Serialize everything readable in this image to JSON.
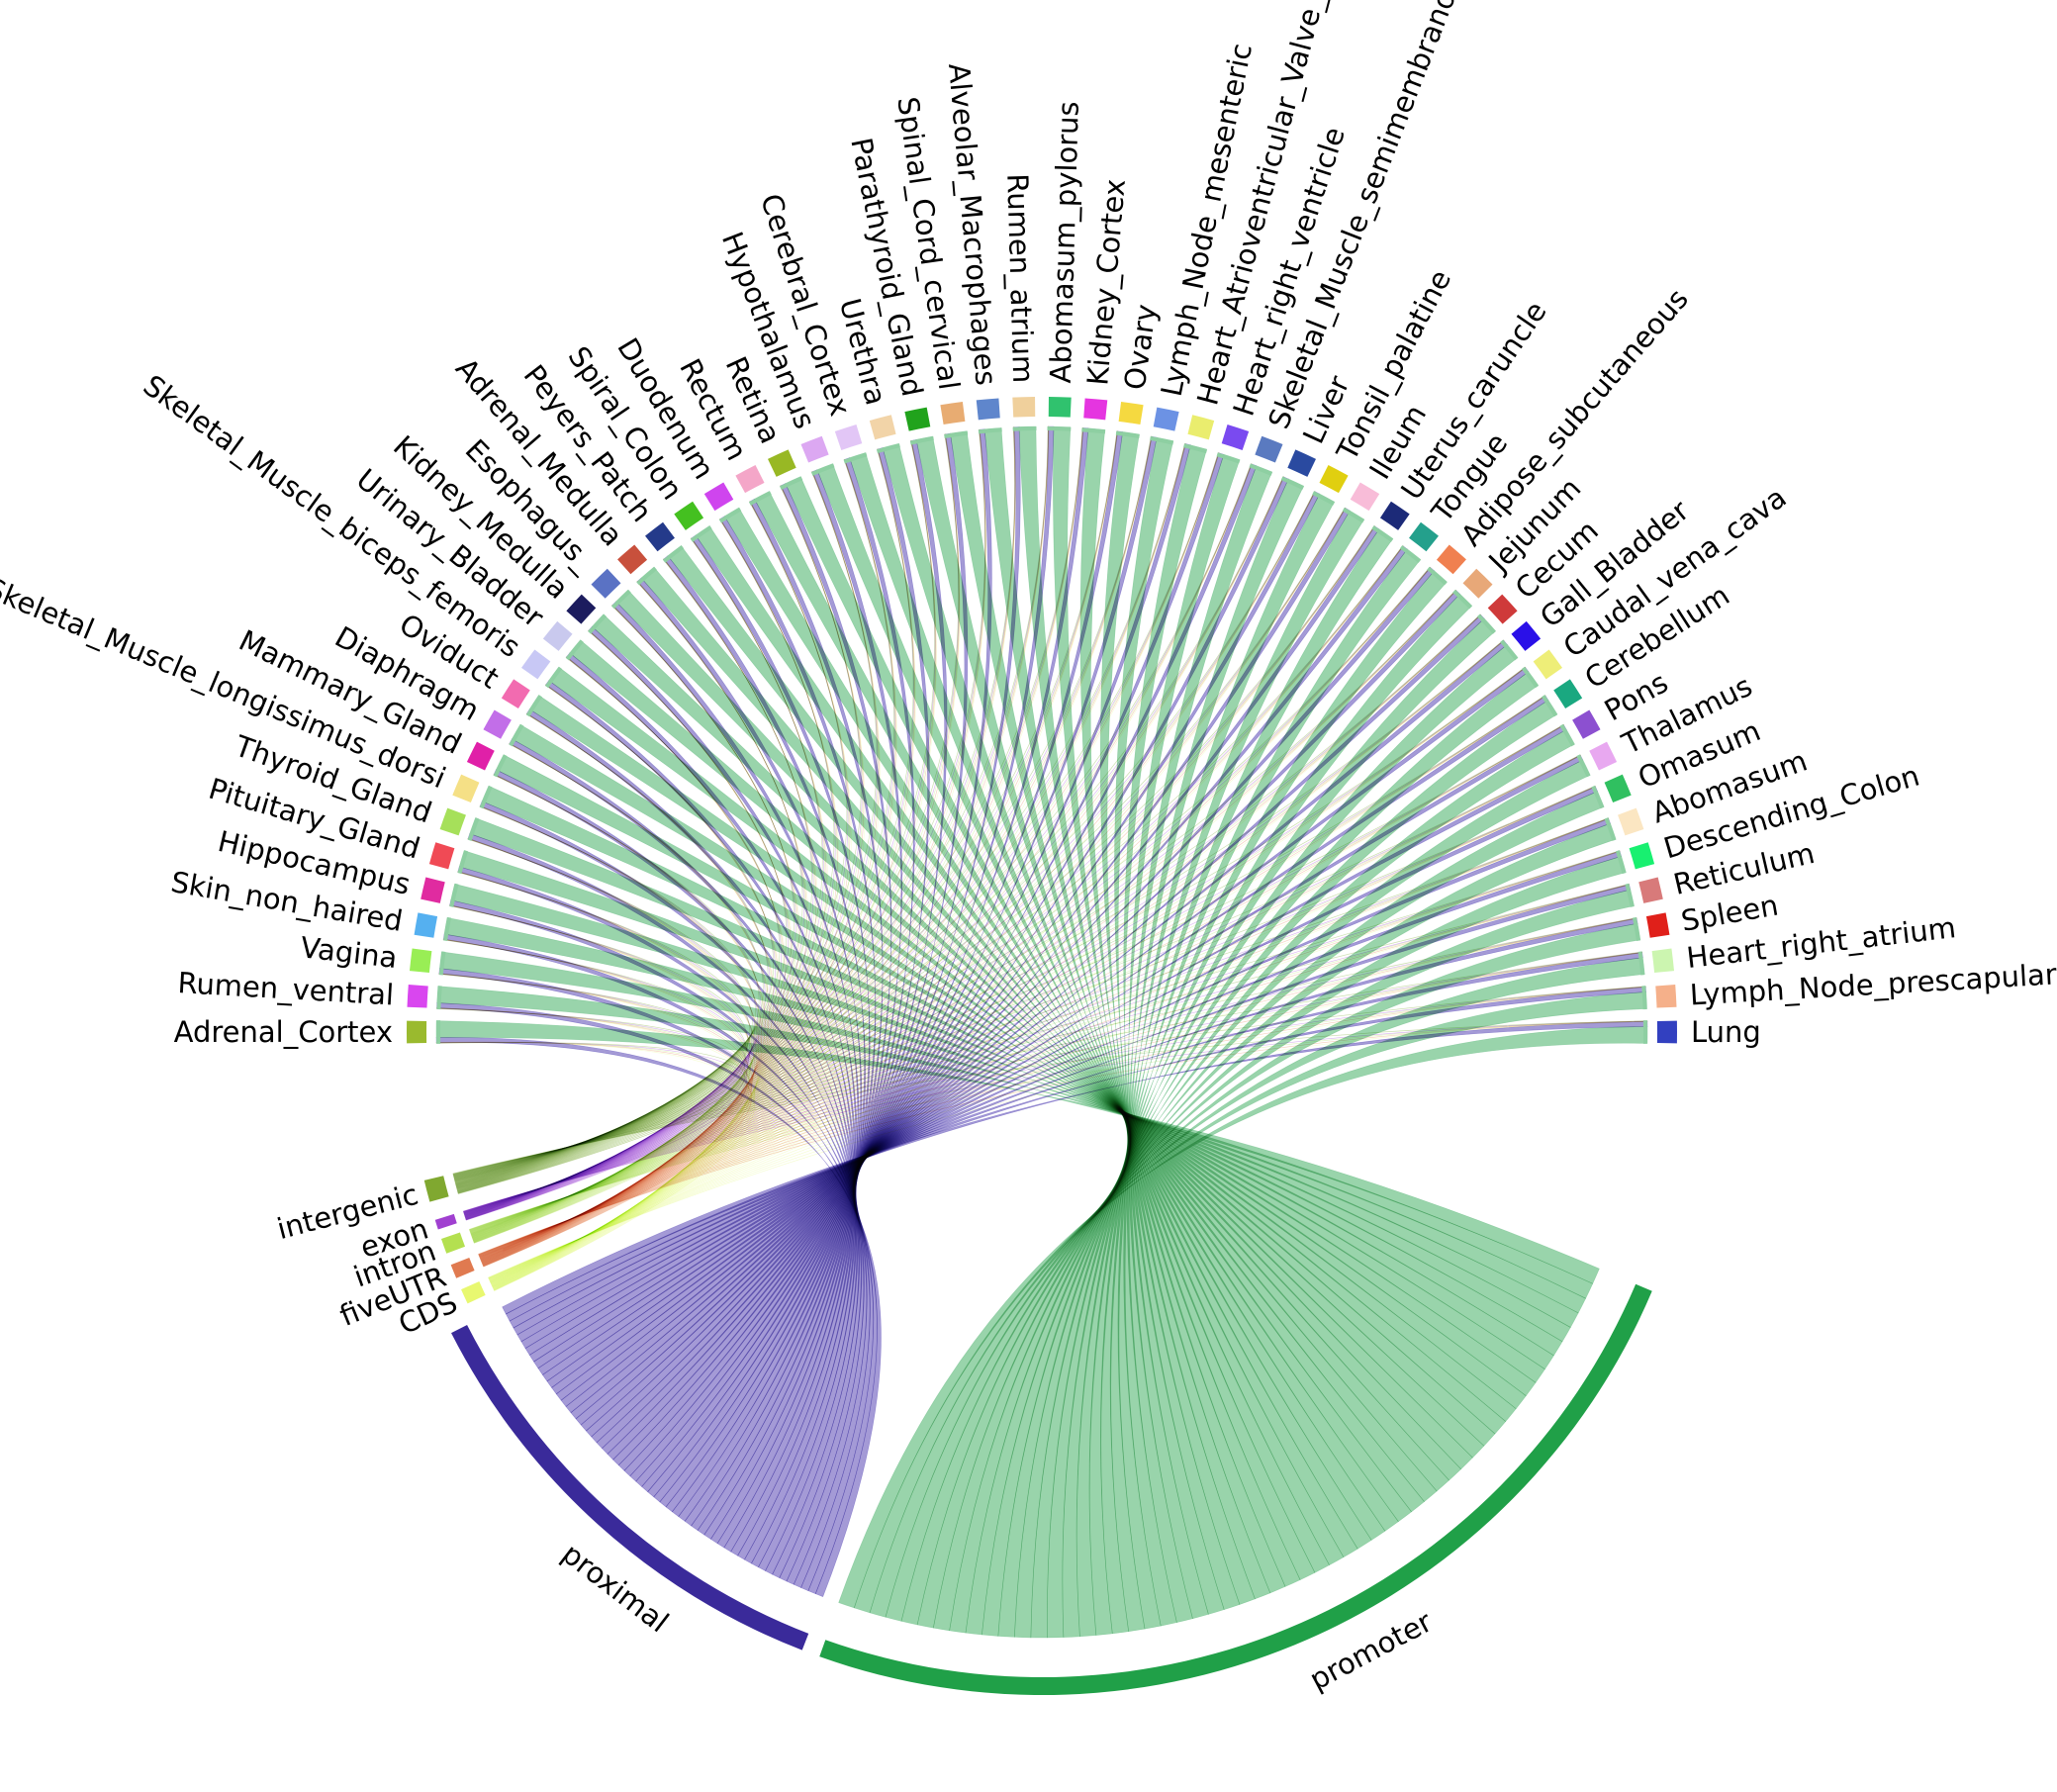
{
  "diagram": {
    "type": "chord",
    "tissues": [
      {
        "name": "Adrenal_Cortex",
        "color": "#9aba2e"
      },
      {
        "name": "Rumen_ventral",
        "color": "#d946ef"
      },
      {
        "name": "Vagina",
        "color": "#99ee55"
      },
      {
        "name": "Skin_non_haired",
        "color": "#55b0f0"
      },
      {
        "name": "Hippocampus",
        "color": "#e02ba0"
      },
      {
        "name": "Pituitary_Gland",
        "color": "#f04a55"
      },
      {
        "name": "Thyroid_Gland",
        "color": "#a6e05a"
      },
      {
        "name": "Skeletal_Muscle_longissimus_dorsi",
        "color": "#f5e086"
      },
      {
        "name": "Mammary_Gland",
        "color": "#e020a8"
      },
      {
        "name": "Diaphragm",
        "color": "#c26ee8"
      },
      {
        "name": "Oviduct",
        "color": "#f26bb0"
      },
      {
        "name": "Skeletal_Muscle_biceps_femoris",
        "color": "#c8c8f5"
      },
      {
        "name": "Urinary_Bladder",
        "color": "#c9c9ee"
      },
      {
        "name": "Kidney_Medulla",
        "color": "#1c1c5e"
      },
      {
        "name": "Esophagus_",
        "color": "#5a72c4"
      },
      {
        "name": "Adrenal_Medulla",
        "color": "#c8503c"
      },
      {
        "name": "Peyers_Patch",
        "color": "#243a8a"
      },
      {
        "name": "Spiral_Colon",
        "color": "#44c020"
      },
      {
        "name": "Duodenum",
        "color": "#cf45ee"
      },
      {
        "name": "Rectum",
        "color": "#f4a6c8"
      },
      {
        "name": "Retina",
        "color": "#98b824"
      },
      {
        "name": "Hypothalamus",
        "color": "#dca8f2"
      },
      {
        "name": "Cerebral_Cortex",
        "color": "#e2c6f6"
      },
      {
        "name": "Urethra",
        "color": "#f2d4a8"
      },
      {
        "name": "Parathyroid_Gland",
        "color": "#21a31c"
      },
      {
        "name": "Spinal_Cord_cervical",
        "color": "#e8ac72"
      },
      {
        "name": "Alveolar_Macrophages",
        "color": "#5f86cc"
      },
      {
        "name": "Rumen_atrium",
        "color": "#f0d09c"
      },
      {
        "name": "Abomasum_pylorus",
        "color": "#30c26e"
      },
      {
        "name": "Kidney_Cortex",
        "color": "#e535e0"
      },
      {
        "name": "Ovary",
        "color": "#f5d940"
      },
      {
        "name": "Lymph_Node_mesenteric",
        "color": "#6c92e4"
      },
      {
        "name": "Heart_Atrioventricular_Valve_left",
        "color": "#eaed6e"
      },
      {
        "name": "Heart_right_ventricle",
        "color": "#7a4af0"
      },
      {
        "name": "Skeletal_Muscle_semimembranosus",
        "color": "#5a7ac0"
      },
      {
        "name": "Liver",
        "color": "#2a4aa0"
      },
      {
        "name": "Tonsil_palatine",
        "color": "#e0cf10"
      },
      {
        "name": "Ileum",
        "color": "#f8bcd8"
      },
      {
        "name": "Uterus_caruncle",
        "color": "#1c2a78"
      },
      {
        "name": "Tongue",
        "color": "#24a08c"
      },
      {
        "name": "Adipose_subcutaneous",
        "color": "#f08050"
      },
      {
        "name": "Jejunum",
        "color": "#e8a878"
      },
      {
        "name": "Cecum",
        "color": "#cf3a3a"
      },
      {
        "name": "Gall_Bladder",
        "color": "#2a10e8"
      },
      {
        "name": "Caudal_vena_cava",
        "color": "#eeee78"
      },
      {
        "name": "Cerebellum",
        "color": "#1aa880"
      },
      {
        "name": "Pons",
        "color": "#8c50d0"
      },
      {
        "name": "Thalamus",
        "color": "#e8a8f0"
      },
      {
        "name": "Omasum",
        "color": "#30c060"
      },
      {
        "name": "Abomasum",
        "color": "#fbe6c2"
      },
      {
        "name": "Descending_Colon",
        "color": "#18f070"
      },
      {
        "name": "Reticulum",
        "color": "#d87a7a"
      },
      {
        "name": "Spleen",
        "color": "#e0201a"
      },
      {
        "name": "Heart_right_atrium",
        "color": "#ccf5b0"
      },
      {
        "name": "Lymph_Node_prescapular",
        "color": "#f5b08a"
      },
      {
        "name": "Lung",
        "color": "#3240c0"
      }
    ],
    "regions": [
      {
        "name": "intergenic",
        "color": "#80a830",
        "ribbon": "#b4cf8a"
      },
      {
        "name": "exon",
        "color": "#a040d0",
        "ribbon": "#c890e8"
      },
      {
        "name": "intron",
        "color": "#b4e050",
        "ribbon": "#d8f0a8"
      },
      {
        "name": "fiveUTR",
        "color": "#e07a50",
        "ribbon": "#f0b898"
      },
      {
        "name": "CDS",
        "color": "#e8f870",
        "ribbon": "#f2fcc0"
      },
      {
        "name": "proximal",
        "color": "#3a2a9a",
        "ribbon": "#9a8fd2"
      },
      {
        "name": "promoter",
        "color": "#20a048",
        "ribbon": "#8ecfa2"
      }
    ]
  }
}
